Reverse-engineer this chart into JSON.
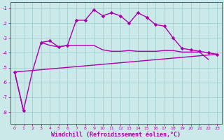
{
  "xlabel": "Windchill (Refroidissement éolien,°C)",
  "x_values": [
    0,
    1,
    2,
    3,
    4,
    5,
    6,
    7,
    8,
    9,
    10,
    11,
    12,
    13,
    14,
    15,
    16,
    17,
    18,
    19,
    20,
    21,
    22,
    23
  ],
  "curve1_y": [
    -5.3,
    -7.9,
    null,
    -3.3,
    -3.2,
    -3.6,
    -3.5,
    -1.8,
    -1.8,
    -1.1,
    -1.5,
    -1.3,
    -1.5,
    -2.0,
    -1.3,
    -1.6,
    -2.1,
    -2.2,
    -3.0,
    -3.7,
    -3.8,
    -3.9,
    -4.0,
    -4.1
  ],
  "curve2_y": [
    -5.3,
    -7.9,
    -5.3,
    -3.3,
    -3.5,
    -3.6,
    -3.5,
    -3.5,
    -3.5,
    -3.5,
    -3.8,
    -3.9,
    -3.9,
    -3.85,
    -3.9,
    -3.9,
    -3.9,
    -3.85,
    -3.85,
    -3.95,
    -3.95,
    -3.95,
    -4.45,
    null
  ],
  "curve3_x": [
    0,
    23
  ],
  "curve3_y": [
    -5.3,
    -4.1
  ],
  "ylim": [
    -8.8,
    -0.6
  ],
  "xlim": [
    -0.5,
    23.5
  ],
  "bg_color": "#cce9e9",
  "line_color": "#aa00aa",
  "grid_color": "#99cccc",
  "yticks": [
    -8,
    -7,
    -6,
    -5,
    -4,
    -3,
    -2,
    -1
  ],
  "xticks": [
    0,
    1,
    2,
    3,
    4,
    5,
    6,
    7,
    8,
    9,
    10,
    11,
    12,
    13,
    14,
    15,
    16,
    17,
    18,
    19,
    20,
    21,
    22,
    23
  ],
  "xlabel_fontsize": 6.0,
  "tick_fontsize": 5.0,
  "linewidth": 1.0,
  "markersize": 2.8
}
